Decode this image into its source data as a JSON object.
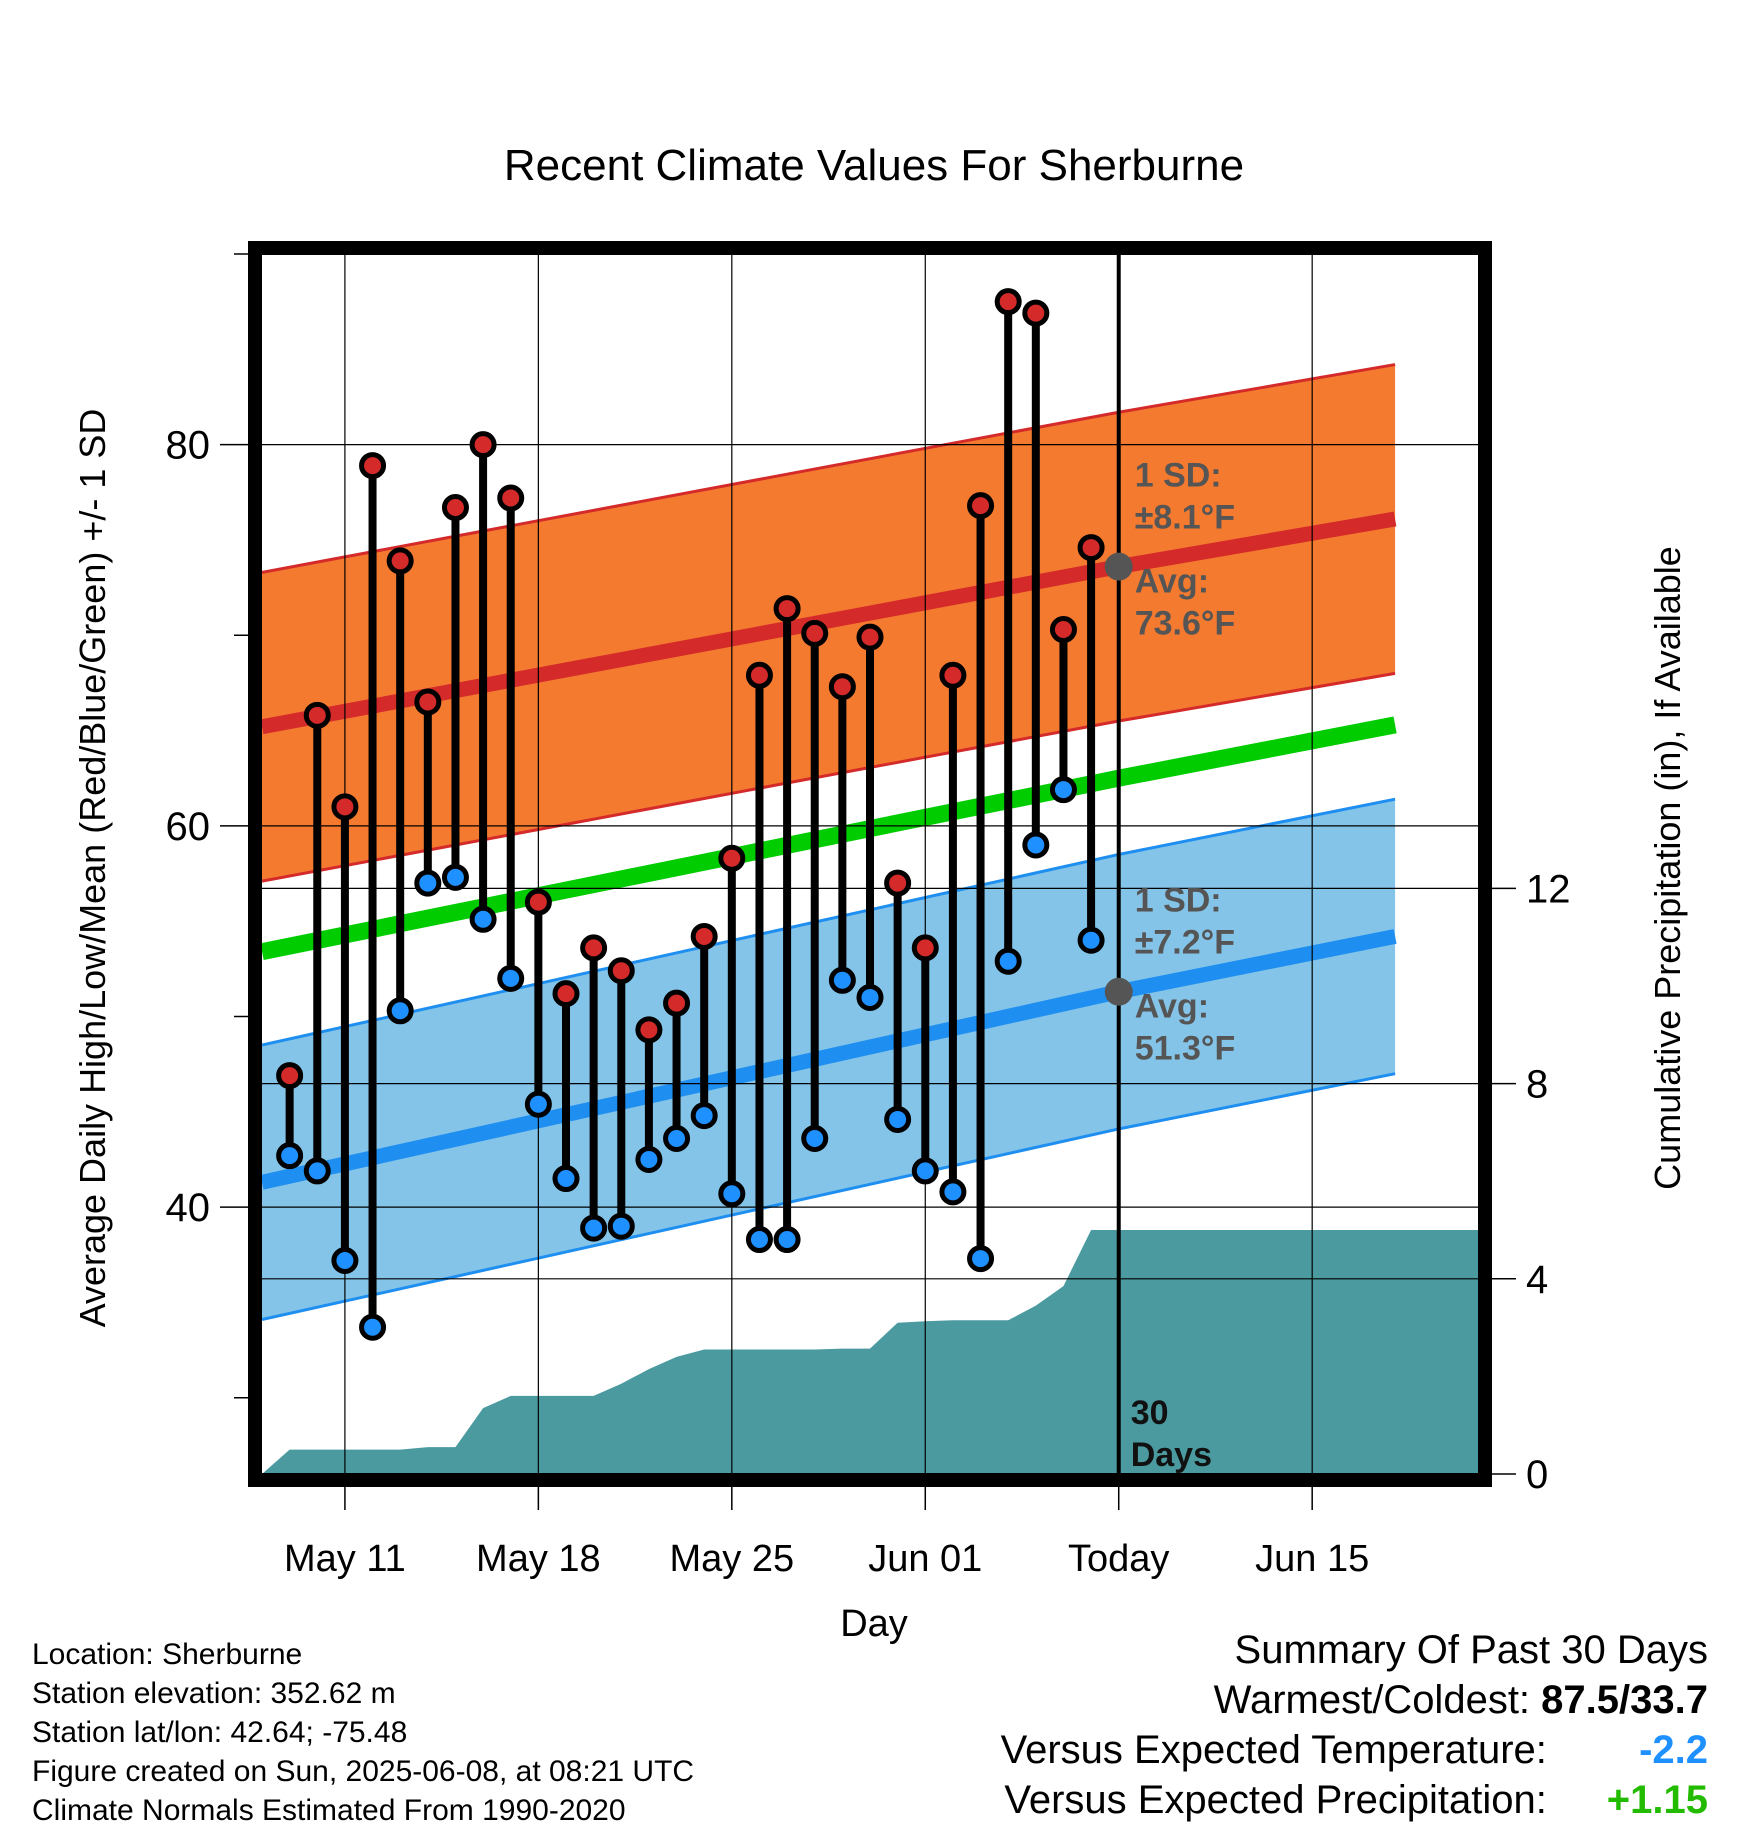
{
  "colors": {
    "high_band": "#f47a30",
    "high_line": "#d42a2a",
    "low_band": "#84c4e8",
    "low_line": "#1e8ff0",
    "mean_line": "#00cc00",
    "precip": "#4a9aa0",
    "high_point": "#d42a2a",
    "low_point": "#1e90ff",
    "today_marker": "#555555"
  },
  "chart_data": {
    "type": "line",
    "title": "Recent Climate Values For Sherburne",
    "xlabel": "Day",
    "ylabel": "Average Daily High/Low/Mean (Red/Blue/Green) +/- 1 SD",
    "y2label": "Cumulative Precipitation (in), If Available",
    "xlim": [
      "2025-05-08",
      "2025-06-21"
    ],
    "ylim": [
      26,
      90
    ],
    "y2lim": [
      0,
      25
    ],
    "x_ticks": [
      {
        "date": "2025-05-11",
        "label": "May 11"
      },
      {
        "date": "2025-05-18",
        "label": "May 18"
      },
      {
        "date": "2025-05-25",
        "label": "May 25"
      },
      {
        "date": "2025-06-01",
        "label": "Jun 01"
      },
      {
        "date": "2025-06-08",
        "label": "Today"
      },
      {
        "date": "2025-06-15",
        "label": "Jun 15"
      }
    ],
    "y_ticks": [
      40,
      60,
      80
    ],
    "y2_ticks": [
      0,
      4,
      8,
      12
    ],
    "grid": true,
    "normals": {
      "dates": [
        "2025-05-08",
        "2025-06-08",
        "2025-06-18"
      ],
      "avg_high": [
        65.2,
        73.6,
        76.1
      ],
      "high_sd": 8.1,
      "avg_low": [
        41.3,
        51.3,
        54.2
      ],
      "low_sd": 7.2,
      "avg_mean": [
        53.4,
        62.5,
        65.3
      ]
    },
    "daily_dates": [
      "2025-05-09",
      "2025-05-10",
      "2025-05-11",
      "2025-05-12",
      "2025-05-13",
      "2025-05-14",
      "2025-05-15",
      "2025-05-16",
      "2025-05-17",
      "2025-05-18",
      "2025-05-19",
      "2025-05-20",
      "2025-05-21",
      "2025-05-22",
      "2025-05-23",
      "2025-05-24",
      "2025-05-25",
      "2025-05-26",
      "2025-05-27",
      "2025-05-28",
      "2025-05-29",
      "2025-05-30",
      "2025-05-31",
      "2025-06-01",
      "2025-06-02",
      "2025-06-03",
      "2025-06-04",
      "2025-06-05",
      "2025-06-06",
      "2025-06-07"
    ],
    "series": [
      {
        "name": "High",
        "values": [
          46.9,
          65.8,
          61.0,
          78.9,
          73.9,
          66.5,
          76.7,
          80.0,
          77.2,
          56.0,
          51.2,
          53.6,
          52.4,
          49.3,
          50.7,
          54.2,
          58.3,
          67.9,
          71.4,
          70.1,
          67.3,
          69.9,
          57.0,
          53.6,
          67.9,
          76.8,
          87.5,
          86.9,
          70.3,
          74.6
        ]
      },
      {
        "name": "Low",
        "values": [
          42.7,
          41.9,
          37.2,
          33.7,
          50.3,
          57.0,
          57.3,
          55.1,
          52.0,
          45.4,
          41.5,
          38.9,
          39.0,
          42.5,
          43.6,
          44.8,
          40.7,
          38.3,
          38.3,
          43.6,
          51.9,
          51.0,
          44.6,
          41.9,
          40.8,
          37.3,
          52.9,
          59.0,
          61.9,
          54.0
        ]
      },
      {
        "name": "Cumulative Precipitation",
        "dates": [
          "2025-05-08",
          "2025-05-09",
          "2025-05-10",
          "2025-05-11",
          "2025-05-12",
          "2025-05-13",
          "2025-05-14",
          "2025-05-15",
          "2025-05-16",
          "2025-05-17",
          "2025-05-18",
          "2025-05-19",
          "2025-05-20",
          "2025-05-21",
          "2025-05-22",
          "2025-05-23",
          "2025-05-24",
          "2025-05-25",
          "2025-05-26",
          "2025-05-27",
          "2025-05-28",
          "2025-05-29",
          "2025-05-30",
          "2025-05-31",
          "2025-06-01",
          "2025-06-02",
          "2025-06-03",
          "2025-06-04",
          "2025-06-05",
          "2025-06-06",
          "2025-06-07",
          "2025-06-08",
          "2025-06-21"
        ],
        "values": [
          0.0,
          0.5,
          0.5,
          0.5,
          0.5,
          0.5,
          0.55,
          0.55,
          1.35,
          1.6,
          1.6,
          1.6,
          1.6,
          1.85,
          2.15,
          2.4,
          2.55,
          2.55,
          2.55,
          2.55,
          2.55,
          2.57,
          2.57,
          3.1,
          3.13,
          3.15,
          3.15,
          3.15,
          3.45,
          3.85,
          5.0,
          5.0,
          5.0
        ]
      }
    ],
    "annotations": {
      "high_sd_label": "1 SD:",
      "high_sd_value": "±8.1°F",
      "high_avg_label": "Avg:",
      "high_avg_value": "73.6°F",
      "low_sd_label": "1 SD:",
      "low_sd_value": "±7.2°F",
      "low_avg_label": "Avg:",
      "low_avg_value": "51.3°F",
      "period_line1": "30",
      "period_line2": "Days"
    }
  },
  "info": {
    "location": "Location: Sherburne",
    "elevation": "Station elevation: 352.62 m",
    "latlon": "Station lat/lon: 42.64; -75.48",
    "created": "Figure created on Sun, 2025-06-08, at 08:21 UTC",
    "normals": "Climate Normals Estimated From 1990-2020"
  },
  "summary": {
    "title": "Summary Of Past 30 Days",
    "warm_cold_label": "Warmest/Coldest:",
    "warm_cold_value": "87.5/33.7",
    "temp_label": "Versus Expected Temperature:",
    "temp_value": "-2.2",
    "precip_label": "Versus Expected Precipitation:",
    "precip_value": "+1.15"
  }
}
